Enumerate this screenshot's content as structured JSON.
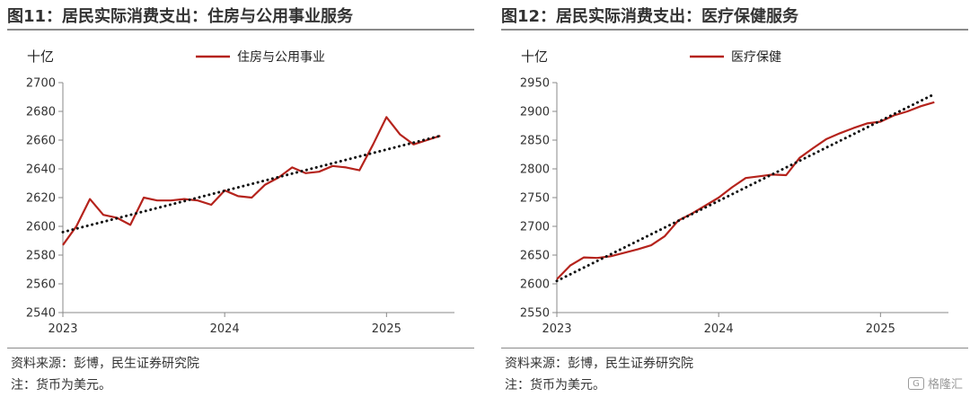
{
  "charts": [
    {
      "panel_title": "图11：居民实际消费支出：住房与公用事业服务",
      "unit": "十亿",
      "source": "资料来源：彭博，民生证券研究院",
      "note": "注：货币为美元。",
      "chart_data": {
        "type": "line",
        "title": "图11：居民实际消费支出：住房与公用事业服务",
        "unit": "十亿",
        "x_ticks": [
          "2023",
          "2024",
          "2025"
        ],
        "x_range": [
          2023.0,
          2025.42
        ],
        "ylim": [
          2540,
          2700
        ],
        "y_ticks": [
          2540,
          2560,
          2580,
          2600,
          2620,
          2640,
          2660,
          2680,
          2700
        ],
        "grid": false,
        "legend_position": "top-center",
        "series": [
          {
            "name": "住房与公用事业",
            "color": "#b5231c",
            "style": "solid",
            "x": [
              2023.0,
              2023.083,
              2023.167,
              2023.25,
              2023.333,
              2023.417,
              2023.5,
              2023.583,
              2023.667,
              2023.75,
              2023.833,
              2023.917,
              2024.0,
              2024.083,
              2024.167,
              2024.25,
              2024.333,
              2024.417,
              2024.5,
              2024.583,
              2024.667,
              2024.75,
              2024.833,
              2024.917,
              2025.0,
              2025.083,
              2025.167,
              2025.25,
              2025.333
            ],
            "values": [
              2587,
              2600,
              2619,
              2608,
              2606,
              2601,
              2620,
              2618,
              2618,
              2619,
              2618,
              2615,
              2625,
              2621,
              2620,
              2629,
              2634,
              2641,
              2637,
              2638,
              2642,
              2641,
              2639,
              2657,
              2676,
              2664,
              2657,
              2660,
              2663
            ]
          },
          {
            "name": "trend",
            "color": "#111111",
            "style": "dotted",
            "x": [
              2023.0,
              2025.333
            ],
            "values": [
              2596,
              2663
            ]
          }
        ]
      }
    },
    {
      "panel_title": "图12：居民实际消费支出：医疗保健服务",
      "unit": "十亿",
      "source": "资料来源：彭博，民生证券研究院",
      "note": "注：货币为美元。",
      "chart_data": {
        "type": "line",
        "title": "图12：居民实际消费支出：医疗保健服务",
        "unit": "十亿",
        "x_ticks": [
          "2023",
          "2024",
          "2025"
        ],
        "x_range": [
          2023.0,
          2025.42
        ],
        "ylim": [
          2550,
          2950
        ],
        "y_ticks": [
          2550,
          2600,
          2650,
          2700,
          2750,
          2800,
          2850,
          2900,
          2950
        ],
        "grid": false,
        "legend_position": "top-center",
        "series": [
          {
            "name": "医疗保健",
            "color": "#b5231c",
            "style": "solid",
            "x": [
              2023.0,
              2023.083,
              2023.167,
              2023.25,
              2023.333,
              2023.417,
              2023.5,
              2023.583,
              2023.667,
              2023.75,
              2023.833,
              2023.917,
              2024.0,
              2024.083,
              2024.167,
              2024.25,
              2024.333,
              2024.417,
              2024.5,
              2024.583,
              2024.667,
              2024.75,
              2024.833,
              2024.917,
              2025.0,
              2025.083,
              2025.167,
              2025.25,
              2025.333
            ],
            "values": [
              2608,
              2632,
              2646,
              2645,
              2648,
              2654,
              2660,
              2667,
              2683,
              2710,
              2722,
              2736,
              2750,
              2768,
              2784,
              2787,
              2790,
              2789,
              2819,
              2836,
              2852,
              2862,
              2871,
              2879,
              2882,
              2893,
              2900,
              2909,
              2916
            ]
          },
          {
            "name": "trend",
            "color": "#111111",
            "style": "dotted",
            "x": [
              2023.0,
              2025.333
            ],
            "values": [
              2605,
              2930
            ]
          }
        ]
      }
    }
  ],
  "watermark": {
    "icon": "gelonghui-logo-icon",
    "text": "格隆汇"
  }
}
